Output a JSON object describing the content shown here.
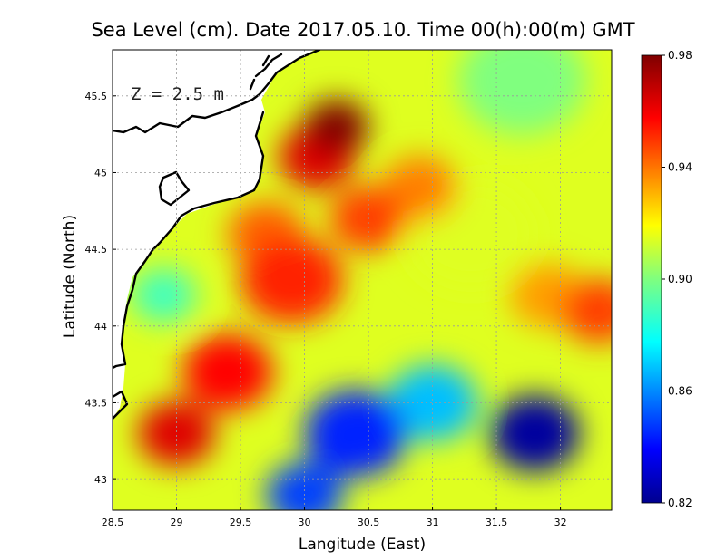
{
  "chart_data": {
    "type": "heatmap",
    "title": "Sea Level (cm). Date 2017.05.10. Time 00(h):00(m) GMT",
    "xlabel": "Langitude (East)",
    "ylabel": "Latitude (North)",
    "annotation": "Z = 2.5 m",
    "xlim": [
      28.5,
      32.4
    ],
    "ylim": [
      42.8,
      45.8
    ],
    "x_ticks": [
      "28.5",
      "29",
      "29.5",
      "30",
      "30.5",
      "31",
      "31.5",
      "32"
    ],
    "y_ticks": [
      "43",
      "43.5",
      "44",
      "44.5",
      "45",
      "45.5"
    ],
    "grid": true,
    "colorbar": {
      "min": 0.82,
      "max": 0.98,
      "ticks": [
        "0.98",
        "0.94",
        "0.90",
        "0.86",
        "0.82"
      ],
      "colormap": "jet"
    },
    "field_features": [
      {
        "lon": 30.25,
        "lat": 45.3,
        "value": 0.98,
        "radius_deg": 0.25
      },
      {
        "lon": 30.1,
        "lat": 45.1,
        "value": 0.965,
        "radius_deg": 0.3
      },
      {
        "lon": 29.0,
        "lat": 43.3,
        "value": 0.965,
        "radius_deg": 0.3
      },
      {
        "lon": 29.4,
        "lat": 43.7,
        "value": 0.96,
        "radius_deg": 0.35
      },
      {
        "lon": 29.9,
        "lat": 44.3,
        "value": 0.955,
        "radius_deg": 0.4
      },
      {
        "lon": 30.5,
        "lat": 44.7,
        "value": 0.95,
        "radius_deg": 0.3
      },
      {
        "lon": 29.7,
        "lat": 44.6,
        "value": 0.945,
        "radius_deg": 0.3
      },
      {
        "lon": 30.9,
        "lat": 44.9,
        "value": 0.94,
        "radius_deg": 0.3
      },
      {
        "lon": 32.3,
        "lat": 44.1,
        "value": 0.95,
        "radius_deg": 0.3
      },
      {
        "lon": 31.9,
        "lat": 44.2,
        "value": 0.935,
        "radius_deg": 0.3
      },
      {
        "lon": 28.9,
        "lat": 44.2,
        "value": 0.89,
        "radius_deg": 0.25
      },
      {
        "lon": 31.7,
        "lat": 45.6,
        "value": 0.9,
        "radius_deg": 0.5
      },
      {
        "lon": 30.4,
        "lat": 43.3,
        "value": 0.845,
        "radius_deg": 0.4
      },
      {
        "lon": 31.8,
        "lat": 43.3,
        "value": 0.825,
        "radius_deg": 0.35
      },
      {
        "lon": 30.0,
        "lat": 42.9,
        "value": 0.85,
        "radius_deg": 0.3
      },
      {
        "lon": 31.0,
        "lat": 43.5,
        "value": 0.87,
        "radius_deg": 0.35
      },
      {
        "lon": 31.3,
        "lat": 44.6,
        "value": 0.915,
        "radius_deg": 0.5
      }
    ],
    "background_value": 0.915
  }
}
